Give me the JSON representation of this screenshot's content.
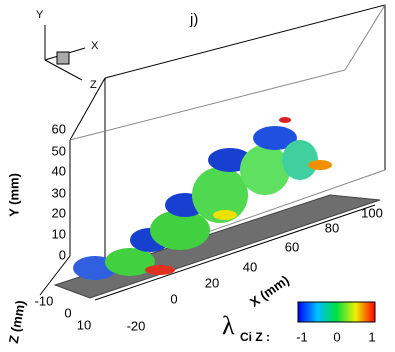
{
  "panel_label": "j)",
  "triad": {
    "y": "Y",
    "x": "X",
    "z": "Z"
  },
  "y_axis": {
    "label": "Y (mm)",
    "ticks": [
      0,
      10,
      20,
      30,
      40,
      50,
      60
    ]
  },
  "z_axis": {
    "label": "Z (mm)",
    "ticks": [
      -10,
      0,
      10
    ]
  },
  "x_axis": {
    "label": "X (mm)",
    "ticks": [
      -20,
      0,
      20,
      40,
      60,
      80,
      100
    ]
  },
  "colorbar": {
    "symbol": "λ",
    "subscript": "Ci Z :",
    "ticks": [
      -1,
      0,
      1
    ]
  }
}
